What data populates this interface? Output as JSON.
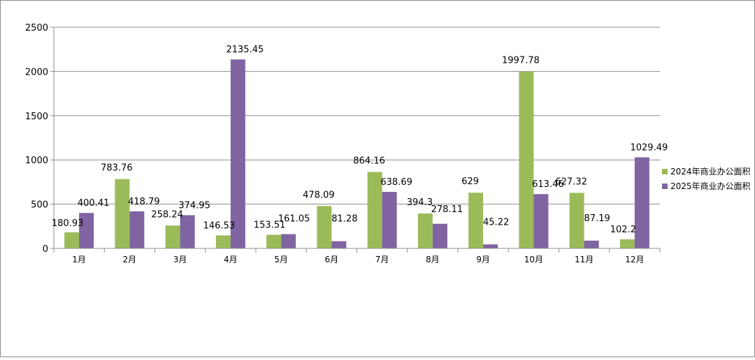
{
  "chart_data": {
    "type": "bar",
    "categories": [
      "1月",
      "2月",
      "3月",
      "4月",
      "5月",
      "6月",
      "7月",
      "8月",
      "9月",
      "10月",
      "11月",
      "12月"
    ],
    "series": [
      {
        "name": "2024年商业办公面积",
        "color": "#9bbb59",
        "values": [
          180.93,
          783.76,
          258.24,
          146.53,
          153.51,
          478.09,
          864.16,
          394.3,
          629,
          1997.78,
          627.32,
          102.2
        ],
        "labels": [
          "180.93",
          "783.76",
          "258.24",
          "146.53",
          "153.51",
          "478.09",
          "864.16",
          "394.3",
          "629",
          "1997.78",
          "627.32",
          "102.2"
        ]
      },
      {
        "name": "2025年商业办公面积",
        "color": "#8064a2",
        "values": [
          400.41,
          418.79,
          374.95,
          2135.45,
          161.05,
          81.28,
          638.69,
          278.11,
          45.22,
          613.46,
          87.19,
          1029.49
        ],
        "labels": [
          "400.41",
          "418.79",
          "374.95",
          "2135.45",
          "161.05",
          "81.28",
          "638.69",
          "278.11",
          "45.22",
          "613.46",
          "87.19",
          "1029.49"
        ]
      }
    ],
    "yticks": [
      "0",
      "500",
      "1000",
      "1500",
      "2000",
      "2500"
    ],
    "ylim": [
      0,
      2500
    ],
    "grid": true,
    "legend": "right"
  }
}
